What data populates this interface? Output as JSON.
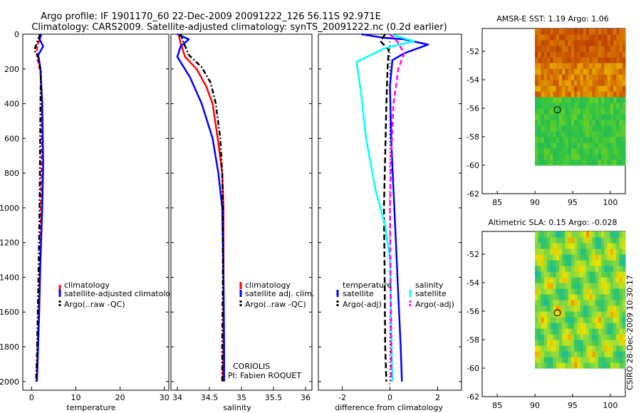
{
  "header": {
    "line1": "Argo profile: IF 1901170_60 22-Dec-2009 20091222_126 56.11S 92.971E",
    "line2": "Climatology: CARS2009. Satellite-adjusted climatology: synTS_20091222.nc (0.2d earlier)"
  },
  "footer": {
    "stamp": "CSIRO 28-Dec-2009 10:30:17",
    "center": "CORIOLIS",
    "pi": "PI: Fabien ROQUET"
  },
  "colors": {
    "climatology": "#ff0000",
    "satellite": "#0000ff",
    "argo": "#000000",
    "sat_sal": "#00ffff",
    "argo_sal": "#ff00ff"
  },
  "chart_data": [
    {
      "type": "line",
      "title": "",
      "xlabel": "temperature",
      "ylabel": "",
      "xlim": [
        -2,
        31
      ],
      "ylim": [
        2050,
        0
      ],
      "xticks": [
        "0",
        "10",
        "20",
        "30"
      ],
      "xtick_values": [
        0,
        10,
        20,
        30
      ],
      "yticks": [
        "0",
        "200",
        "400",
        "600",
        "800",
        "1000",
        "1200",
        "1400",
        "1600",
        "1800",
        "2000"
      ],
      "ytick_values": [
        0,
        200,
        400,
        600,
        800,
        1000,
        1200,
        1400,
        1600,
        1800,
        2000
      ],
      "legend": [
        "climatology",
        "satellite-adjusted climatolog",
        "Argo(..raw -QC)"
      ],
      "series": [
        {
          "name": "climatology",
          "color": "#ff0000",
          "dash": "6,3",
          "x": [
            2.1,
            1.7,
            1.2,
            1.3,
            2.0,
            2.3,
            2.3,
            2.1,
            1.9,
            1.6,
            1.3,
            1.1
          ],
          "y": [
            0,
            30,
            80,
            140,
            220,
            400,
            700,
            1000,
            1300,
            1600,
            1850,
            2000
          ]
        },
        {
          "name": "satellite-adjusted climatology",
          "color": "#0000ff",
          "dash": "",
          "x": [
            2.2,
            1.8,
            2.6,
            1.5,
            2.0,
            2.4,
            2.6,
            2.4,
            2.0,
            1.7,
            1.4,
            1.2
          ],
          "y": [
            0,
            30,
            70,
            120,
            200,
            400,
            750,
            1000,
            1300,
            1600,
            1850,
            2000
          ]
        },
        {
          "name": "Argo(..raw -QC)",
          "color": "#000000",
          "dash": "7,3,2,3",
          "x": [
            1.9,
            1.5,
            0.6,
            1.6,
            2.1,
            2.0,
            1.9,
            1.8,
            1.6,
            1.4,
            1.2,
            1.0
          ],
          "y": [
            0,
            30,
            90,
            140,
            220,
            400,
            700,
            1000,
            1300,
            1600,
            1850,
            2000
          ]
        }
      ]
    },
    {
      "type": "line",
      "xlabel": "salinity",
      "xlim": [
        33.9,
        36.1
      ],
      "ylim": [
        2050,
        0
      ],
      "xticks": [
        "34",
        "34.5",
        "35",
        "35.5",
        "36"
      ],
      "xtick_values": [
        34,
        34.5,
        35,
        35.5,
        36
      ],
      "legend": [
        "climatology",
        "satellite adj. clim.",
        "Argo(..raw -QC)"
      ],
      "series": [
        {
          "name": "climatology",
          "color": "#ff0000",
          "dash": "",
          "x": [
            34.02,
            34.05,
            34.12,
            34.3,
            34.45,
            34.55,
            34.63,
            34.7,
            34.72,
            34.72,
            34.72,
            34.71
          ],
          "y": [
            0,
            50,
            130,
            200,
            300,
            400,
            600,
            800,
            1000,
            1400,
            1800,
            2000
          ]
        },
        {
          "name": "satellite adj. clim.",
          "color": "#0000ff",
          "dash": "",
          "x": [
            34.0,
            34.18,
            34.05,
            34.0,
            34.2,
            34.38,
            34.55,
            34.64,
            34.7,
            34.72,
            34.73,
            34.73
          ],
          "y": [
            0,
            30,
            70,
            130,
            250,
            400,
            600,
            800,
            1000,
            1400,
            1800,
            2000
          ]
        },
        {
          "name": "Argo(..raw -QC)",
          "color": "#000000",
          "dash": "7,3,2,3",
          "x": [
            34.05,
            34.1,
            34.18,
            34.38,
            34.52,
            34.6,
            34.67,
            34.7,
            34.71,
            34.71,
            34.7,
            34.7
          ],
          "y": [
            0,
            50,
            120,
            190,
            280,
            400,
            600,
            800,
            1000,
            1400,
            1800,
            2000
          ]
        }
      ]
    },
    {
      "type": "line",
      "xlabel": "difference from climatology",
      "xlim": [
        -3,
        3
      ],
      "ylim": [
        2050,
        0
      ],
      "xticks": [
        "-2",
        "0",
        "2"
      ],
      "xtick_values": [
        -2,
        0,
        2
      ],
      "legend_groups": [
        {
          "title": "temperature",
          "items": [
            "satellite",
            "Argo(-adj)"
          ]
        },
        {
          "title": "salinity",
          "items": [
            "satellite",
            "Argo(-adj)"
          ]
        }
      ],
      "series": [
        {
          "name": "temperature satellite",
          "color": "#0000ff",
          "dash": "",
          "x": [
            -1.2,
            -0.3,
            0.6,
            1.6,
            0.6,
            0.1,
            0.0,
            0.05,
            0.15,
            0.25,
            0.35,
            0.45,
            0.5
          ],
          "y": [
            0,
            20,
            30,
            60,
            110,
            150,
            300,
            600,
            900,
            1200,
            1500,
            1800,
            2000
          ]
        },
        {
          "name": "temperature Argo(-adj)",
          "color": "#000000",
          "dash": "8,4",
          "x": [
            -0.2,
            -0.4,
            -0.05,
            -0.1,
            -0.15,
            -0.2,
            -0.25,
            -0.22,
            -0.2,
            -0.15
          ],
          "y": [
            0,
            40,
            90,
            200,
            400,
            700,
            1000,
            1400,
            1800,
            2000
          ]
        },
        {
          "name": "salinity satellite",
          "color": "#00ffff",
          "dash": "",
          "x": [
            0.0,
            1.0,
            -0.2,
            -1.4,
            -1.2,
            -1.0,
            -0.6,
            -0.2,
            0.0,
            0.05,
            0.1
          ],
          "y": [
            0,
            40,
            80,
            160,
            350,
            600,
            900,
            1100,
            1300,
            1700,
            2000
          ]
        },
        {
          "name": "salinity Argo(-adj)",
          "color": "#ff00ff",
          "dash": "7,4",
          "x": [
            0.0,
            0.3,
            0.6,
            0.35,
            0.15,
            0.05,
            0.0,
            0.02,
            0.05,
            0.05
          ],
          "y": [
            0,
            40,
            110,
            200,
            400,
            700,
            1000,
            1300,
            1700,
            2000
          ]
        }
      ]
    },
    {
      "type": "heatmap",
      "title": "AMSR-E SST: 1.19 Argo: 1.06",
      "xlim": [
        83,
        102
      ],
      "ylim": [
        -62,
        -50.4
      ],
      "xticks": [
        "85",
        "90",
        "95",
        "100"
      ],
      "xtick_values": [
        85,
        90,
        95,
        100
      ],
      "yticks": [
        "-52",
        "-54",
        "-56",
        "-58",
        "-60",
        "-62"
      ],
      "ytick_values": [
        -52,
        -54,
        -56,
        -58,
        -60,
        -62
      ],
      "extent": {
        "lon": [
          90,
          102
        ],
        "lat": [
          -60,
          -50.4
        ]
      },
      "marker": {
        "lon": 92.971,
        "lat": -56.11
      }
    },
    {
      "type": "heatmap",
      "title": "Altimetric SLA: 0.15 Argo: -0.028",
      "xlim": [
        83,
        102
      ],
      "ylim": [
        -62,
        -50.4
      ],
      "xticks": [
        "85",
        "90",
        "95",
        "100"
      ],
      "xtick_values": [
        85,
        90,
        95,
        100
      ],
      "yticks": [
        "-52",
        "-54",
        "-56",
        "-58",
        "-60",
        "-62"
      ],
      "ytick_values": [
        -52,
        -54,
        -56,
        -58,
        -60,
        -62
      ],
      "extent": {
        "lon": [
          90,
          102
        ],
        "lat": [
          -60,
          -50.4
        ]
      },
      "marker": {
        "lon": 92.971,
        "lat": -56.11
      }
    }
  ]
}
